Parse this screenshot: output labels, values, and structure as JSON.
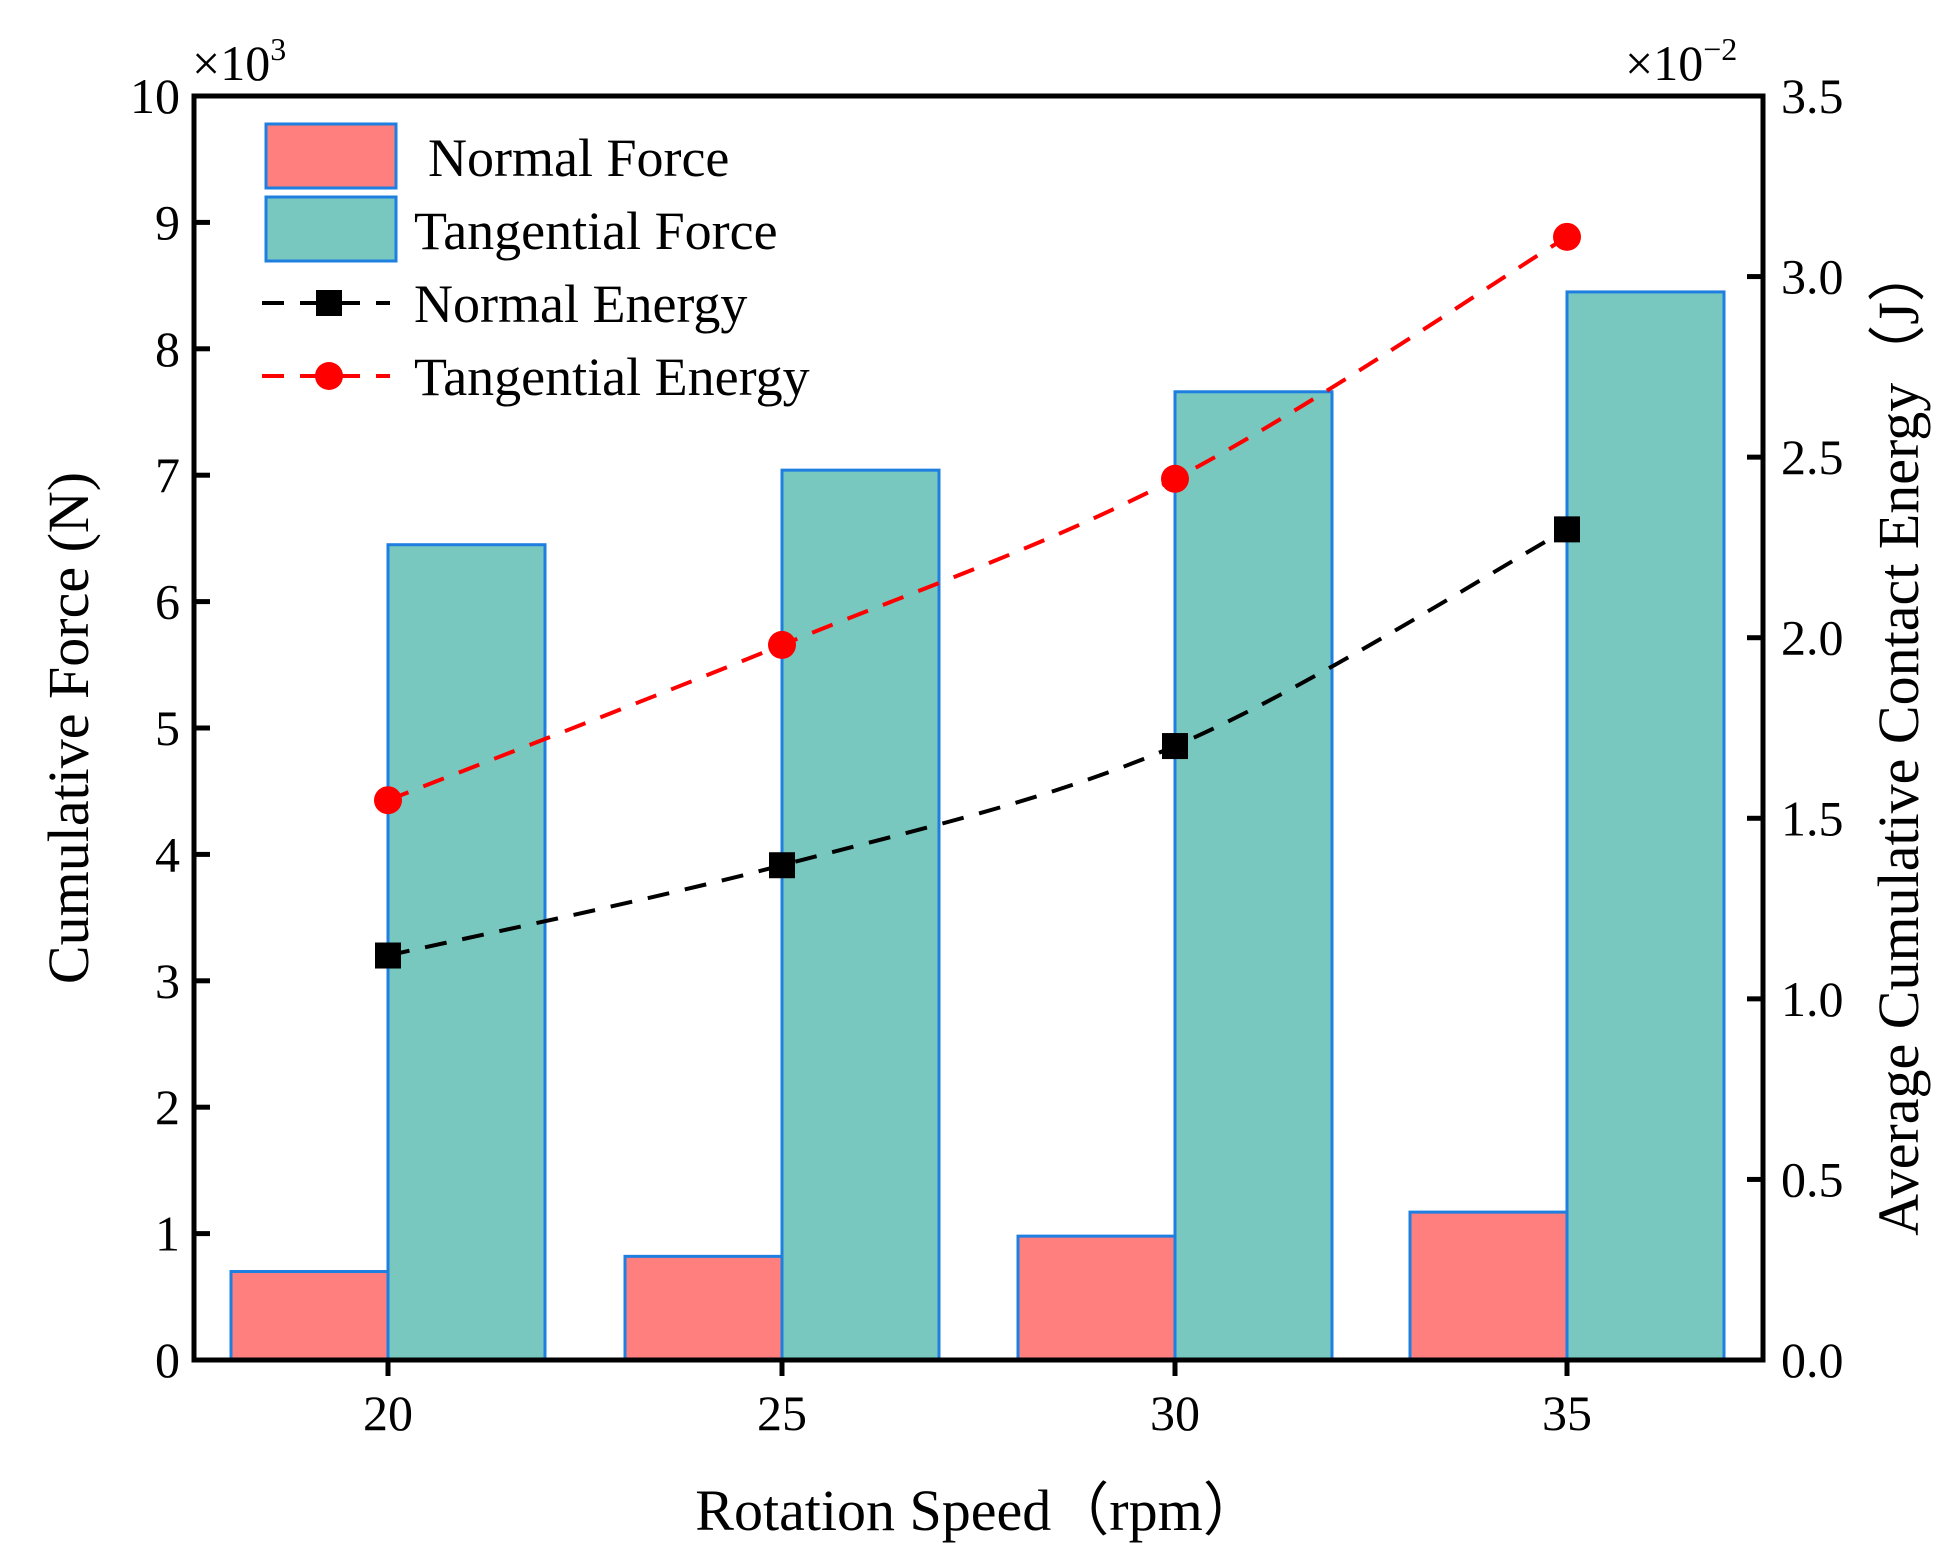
{
  "chart_data": {
    "type": "bar",
    "xlabel": "Rotation Speed（rpm）",
    "ylabel": "Cumulative Force (N)",
    "ylabel_right": "Average Cumulative Contact Energy（J）",
    "y_multiplier": "×10",
    "y_multiplier_exp": "3",
    "y2_multiplier": "×10",
    "y2_multiplier_exp": "−2",
    "categories": [
      "20",
      "25",
      "30",
      "35"
    ],
    "ylim": [
      0,
      10
    ],
    "y2lim": [
      0,
      3.5
    ],
    "yticks": [
      "0",
      "1",
      "2",
      "3",
      "4",
      "5",
      "6",
      "7",
      "8",
      "9",
      "10"
    ],
    "y2ticks": [
      "0.0",
      "0.5",
      "1.0",
      "1.5",
      "2.0",
      "2.5",
      "3.0",
      "3.5"
    ],
    "bar_series": [
      {
        "name": "Normal Force",
        "color": "#FF7F7F",
        "edge": "#1E7FE0",
        "values": [
          0.7,
          0.82,
          0.98,
          1.17
        ]
      },
      {
        "name": "Tangential Force",
        "color": "#78C8BF",
        "edge": "#1E7FE0",
        "values": [
          6.45,
          7.04,
          7.66,
          8.45
        ]
      }
    ],
    "line_series": [
      {
        "name": "Normal Energy",
        "color": "#000000",
        "marker": "square",
        "axis": "right",
        "values": [
          1.12,
          1.37,
          1.7,
          2.3
        ]
      },
      {
        "name": "Tangential Energy",
        "color": "#FF0000",
        "marker": "circle",
        "axis": "right",
        "values": [
          1.55,
          1.98,
          2.44,
          3.11
        ]
      }
    ],
    "legend_position": "top-left",
    "grid": false
  }
}
